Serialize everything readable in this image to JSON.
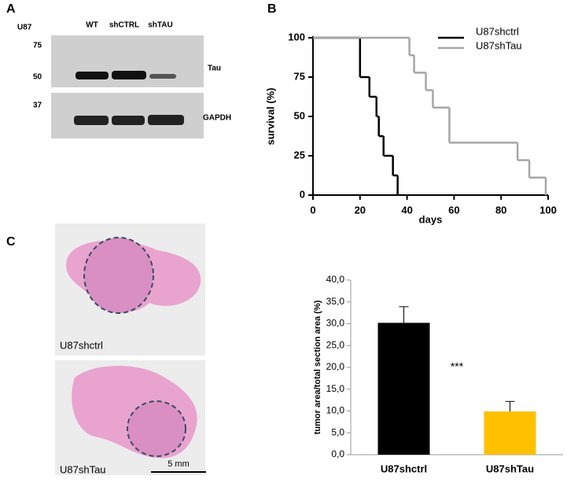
{
  "panels": {
    "a": "A",
    "b": "B",
    "c": "C"
  },
  "blot": {
    "cell_line": "U87",
    "lanes": [
      "WT",
      "shCTRL",
      "shTAU"
    ],
    "markers": [
      75,
      50,
      37
    ],
    "proteins": [
      "Tau",
      "GAPDH"
    ]
  },
  "histology": {
    "labels": [
      "U87shctrl",
      "U87shTau"
    ],
    "scale_bar": "5 mm"
  },
  "chart_data": [
    {
      "type": "step",
      "xlabel": "days",
      "ylabel": "survival (%)",
      "xlim": [
        0,
        100
      ],
      "xticks": [
        0,
        20,
        40,
        60,
        80,
        100
      ],
      "ylim": [
        0,
        100
      ],
      "yticks": [
        0,
        25,
        50,
        75,
        100
      ],
      "legend": "top-right",
      "series": [
        {
          "name": "U87shctrl",
          "color": "#000000",
          "x": [
            0,
            20,
            24,
            27,
            28,
            30,
            34,
            36
          ],
          "values": [
            100,
            75,
            62.5,
            50,
            37.5,
            25,
            12.5,
            0
          ]
        },
        {
          "name": "U87shTau",
          "color": "#a6a6a6",
          "x": [
            0,
            41,
            43,
            48,
            51,
            58,
            87,
            92,
            99
          ],
          "values": [
            100,
            88.9,
            77.8,
            66.7,
            55.6,
            33.3,
            22.2,
            11.1,
            0
          ]
        }
      ]
    },
    {
      "type": "bar",
      "ylabel": "tumor area/total section area (%)",
      "categories": [
        "U87shctrl",
        "U87shTau"
      ],
      "values": [
        30.2,
        9.9
      ],
      "errors": [
        3.7,
        2.3
      ],
      "colors": [
        "#000000",
        "#ffc000"
      ],
      "ylim": [
        0,
        40
      ],
      "yticks": [
        {
          "value": 0,
          "label": "0,0"
        },
        {
          "value": 5,
          "label": "5,0"
        },
        {
          "value": 10,
          "label": "10,0"
        },
        {
          "value": 15,
          "label": "15,0"
        },
        {
          "value": 20,
          "label": "20,0"
        },
        {
          "value": 25,
          "label": "25,0"
        },
        {
          "value": 30,
          "label": "30,0"
        },
        {
          "value": 35,
          "label": "35,0"
        },
        {
          "value": 40,
          "label": "40,0"
        }
      ],
      "annotation": "***"
    }
  ]
}
